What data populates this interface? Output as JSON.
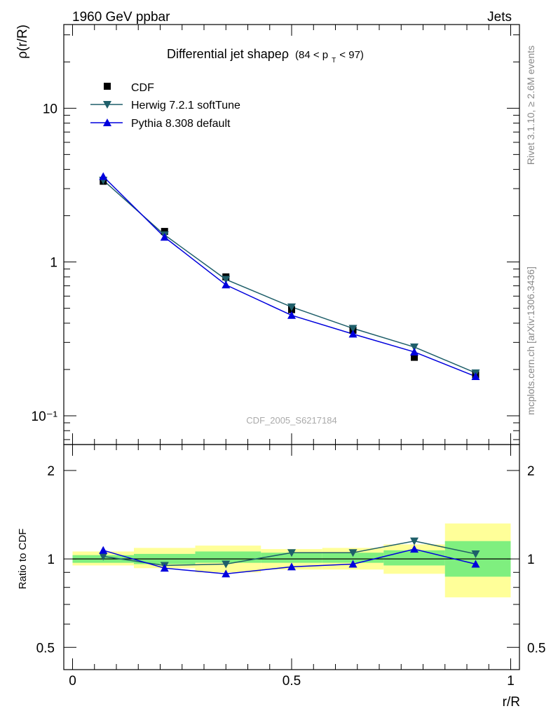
{
  "header": {
    "left": "1960 GeV ppbar",
    "right": "Jets"
  },
  "side_labels": {
    "rivet": "Rivet 3.1.10, ≥ 2.6M events",
    "mcplots": "mcplots.cern.ch [arXiv:1306.3436]"
  },
  "chart_data": {
    "type": "line",
    "title": "Differential jet shapeρ",
    "title_suffix": "(84 < p",
    "title_sub": "T",
    "title_end": " < 97)",
    "watermark": "CDF_2005_S6217184",
    "xlabel": "r/R",
    "ylabel": "ρ(r/R)",
    "ratio_ylabel": "Ratio to CDF",
    "xlim": [
      -0.02,
      1.02
    ],
    "ylim": [
      0.065,
      35
    ],
    "yscale": "log",
    "ratio_ylim": [
      0.42,
      2.45
    ],
    "ratio_yscale": "log",
    "x_ticks": [
      "0",
      "0.5",
      "1"
    ],
    "y_ticks": [
      "10",
      "1",
      "10⁻¹"
    ],
    "ratio_ticks": [
      "2",
      "1",
      "0.5"
    ],
    "x": [
      0.07,
      0.21,
      0.35,
      0.5,
      0.64,
      0.78,
      0.92
    ],
    "series": [
      {
        "name": "CDF",
        "color": "#000000",
        "marker": "square",
        "values": [
          3.35,
          1.58,
          0.8,
          0.49,
          0.36,
          0.24,
          0.185
        ]
      },
      {
        "name": "Herwig 7.2.1 softTune",
        "color": "#1f5f6a",
        "marker": "triangle-down",
        "values": [
          3.4,
          1.5,
          0.77,
          0.51,
          0.37,
          0.28,
          0.19
        ]
      },
      {
        "name": "Pythia 8.308 default",
        "color": "#0000dd",
        "marker": "triangle-up",
        "values": [
          3.6,
          1.45,
          0.71,
          0.45,
          0.34,
          0.26,
          0.18
        ]
      }
    ],
    "ratio_series": [
      {
        "name": "Herwig 7.2.1 softTune",
        "values": [
          1.02,
          0.95,
          0.96,
          1.05,
          1.05,
          1.15,
          1.04
        ]
      },
      {
        "name": "Pythia 8.308 default",
        "values": [
          1.07,
          0.93,
          0.89,
          0.94,
          0.96,
          1.08,
          0.96
        ]
      }
    ],
    "uncertainty_bands": {
      "bins": [
        [
          0.0,
          0.14
        ],
        [
          0.14,
          0.28
        ],
        [
          0.28,
          0.43
        ],
        [
          0.43,
          0.57
        ],
        [
          0.57,
          0.71
        ],
        [
          0.71,
          0.85
        ],
        [
          0.85,
          1.0
        ]
      ],
      "stat_low": [
        0.97,
        0.96,
        0.97,
        0.97,
        0.97,
        0.95,
        0.87
      ],
      "stat_high": [
        1.03,
        1.04,
        1.06,
        1.05,
        1.05,
        1.07,
        1.15
      ],
      "total_low": [
        0.95,
        0.93,
        0.9,
        0.92,
        0.92,
        0.89,
        0.74
      ],
      "total_high": [
        1.06,
        1.09,
        1.11,
        1.08,
        1.09,
        1.12,
        1.32
      ],
      "stat_color": "#7fef7f",
      "total_color": "#ffff99"
    }
  }
}
